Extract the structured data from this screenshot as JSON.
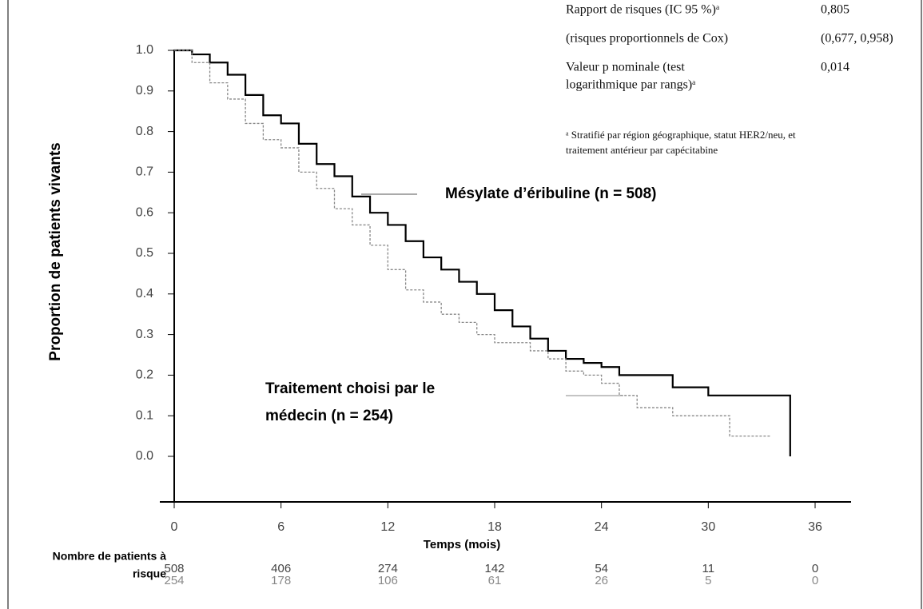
{
  "chart_data": {
    "type": "line",
    "step": true,
    "ylabel": "Proportion de patients vivants",
    "xlabel": "Temps (mois)",
    "xlim": [
      0,
      36
    ],
    "xticks": [
      0,
      6,
      12,
      18,
      24,
      30,
      36
    ],
    "ylim": [
      0,
      1
    ],
    "yticks": [
      {
        "value": 0,
        "label": "0.0"
      },
      0.1,
      0.2,
      0.3,
      0.4,
      0.5,
      0.6,
      0.7,
      0.8,
      0.9,
      {
        "value": 1,
        "label": "1.0"
      }
    ],
    "series": [
      {
        "name": "Mésylate d’éribuline (n = 508)",
        "color": "#000000",
        "x": [
          0,
          1,
          2,
          3,
          4,
          5,
          6,
          7,
          8,
          9,
          10,
          11,
          12,
          13,
          14,
          15,
          16,
          17,
          18,
          19,
          20,
          21,
          22,
          23,
          24,
          25,
          27,
          28,
          30,
          34.6,
          34.6
        ],
        "values": [
          1.0,
          0.99,
          0.97,
          0.94,
          0.89,
          0.84,
          0.82,
          0.77,
          0.72,
          0.69,
          0.64,
          0.6,
          0.57,
          0.53,
          0.49,
          0.46,
          0.43,
          0.4,
          0.36,
          0.32,
          0.29,
          0.26,
          0.24,
          0.23,
          0.22,
          0.2,
          0.2,
          0.17,
          0.15,
          0.15,
          0.0
        ]
      },
      {
        "name": "Traitement choisi par le médecin (n = 254)",
        "color": "#888888",
        "x": [
          0,
          1,
          2,
          3,
          4,
          5,
          6,
          7,
          8,
          9,
          10,
          11,
          12,
          13,
          14,
          15,
          16,
          17,
          18,
          20,
          21,
          22,
          23,
          24,
          25,
          26,
          28,
          31.2,
          33.5
        ],
        "values": [
          1.0,
          0.97,
          0.92,
          0.88,
          0.82,
          0.78,
          0.76,
          0.7,
          0.66,
          0.61,
          0.57,
          0.52,
          0.46,
          0.41,
          0.38,
          0.35,
          0.33,
          0.3,
          0.28,
          0.26,
          0.24,
          0.21,
          0.2,
          0.18,
          0.15,
          0.12,
          0.1,
          0.05,
          0.05
        ]
      }
    ],
    "stats": [
      {
        "label": [
          "Rapport de risques (IC 95 %)ᵃ"
        ],
        "value": "0,805"
      },
      {
        "label": [
          "(risques proportionnels de Cox)"
        ],
        "value": "(0,677, 0,958)"
      },
      {
        "label": [
          "Valeur p nominale (test",
          "logarithmique par rangs)ᵃ"
        ],
        "value": "0,014"
      }
    ],
    "footnote": [
      "ᵃ Stratifié par région géographique, statut HER2/neu, et",
      "traitement antérieur par capécitabine"
    ],
    "risk_table": {
      "label": [
        "Nombre de patients à",
        "risque"
      ],
      "rows": [
        [
          508,
          406,
          274,
          142,
          54,
          11,
          0
        ],
        [
          254,
          178,
          106,
          61,
          26,
          5,
          0
        ]
      ]
    }
  }
}
